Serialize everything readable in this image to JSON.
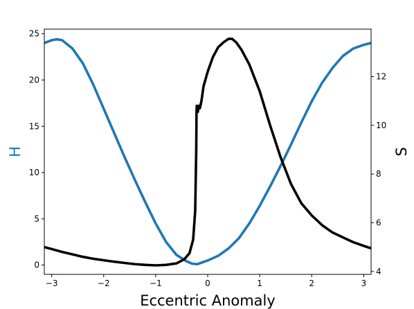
{
  "chart_data": {
    "type": "line",
    "title": "",
    "xlabel": "Eccentric Anomaly",
    "ylabel_left": "H",
    "ylabel_right": "S",
    "xlim": [
      -3.1416,
      3.1416
    ],
    "ylim_left": [
      -1.0,
      25.5
    ],
    "ylim_right": [
      3.88,
      13.95
    ],
    "x_ticks": [
      -3,
      -2,
      -1,
      0,
      1,
      2,
      3
    ],
    "x_tick_labels": [
      "−3",
      "−2",
      "−1",
      "0",
      "1",
      "2",
      "3"
    ],
    "y_left_ticks": [
      0,
      5,
      10,
      15,
      20,
      25
    ],
    "y_left_tick_labels": [
      "0",
      "5",
      "10",
      "15",
      "20",
      "25"
    ],
    "y_right_ticks": [
      4,
      6,
      8,
      10,
      12
    ],
    "y_right_tick_labels": [
      "4",
      "6",
      "8",
      "10",
      "12"
    ],
    "grid": false,
    "series": [
      {
        "axis": "left",
        "color": "#1f77b4",
        "x": [
          -3.1416,
          -3.0,
          -2.9,
          -2.8,
          -2.6,
          -2.4,
          -2.2,
          -2.0,
          -1.8,
          -1.6,
          -1.4,
          -1.2,
          -1.0,
          -0.8,
          -0.6,
          -0.4,
          -0.3,
          -0.2,
          -0.1,
          0.0,
          0.2,
          0.4,
          0.6,
          0.8,
          1.0,
          1.2,
          1.4,
          1.6,
          1.8,
          2.0,
          2.2,
          2.4,
          2.6,
          2.8,
          3.0,
          3.1416
        ],
        "y": [
          24.0,
          24.3,
          24.4,
          24.3,
          23.4,
          21.8,
          19.5,
          16.9,
          14.3,
          11.7,
          9.2,
          6.8,
          4.5,
          2.5,
          1.1,
          0.4,
          0.15,
          0.1,
          0.3,
          0.5,
          1.0,
          1.8,
          2.9,
          4.5,
          6.4,
          8.5,
          10.7,
          13.0,
          15.4,
          17.7,
          19.7,
          21.3,
          22.6,
          23.4,
          23.8,
          24.0
        ]
      },
      {
        "axis": "right",
        "color": "#000000",
        "x": [
          -3.1416,
          -3.0,
          -2.8,
          -2.6,
          -2.4,
          -2.2,
          -2.0,
          -1.8,
          -1.6,
          -1.4,
          -1.2,
          -1.0,
          -0.8,
          -0.6,
          -0.45,
          -0.35,
          -0.28,
          -0.24,
          -0.22,
          -0.215,
          -0.21,
          -0.2,
          -0.19,
          -0.17,
          -0.15,
          -0.12,
          -0.08,
          0.0,
          0.1,
          0.2,
          0.3,
          0.4,
          0.47,
          0.55,
          0.65,
          0.8,
          1.0,
          1.2,
          1.4,
          1.6,
          1.8,
          2.0,
          2.2,
          2.4,
          2.6,
          2.8,
          3.0,
          3.1416
        ],
        "y": [
          5.0,
          4.92,
          4.8,
          4.7,
          4.6,
          4.52,
          4.46,
          4.4,
          4.35,
          4.3,
          4.27,
          4.25,
          4.27,
          4.33,
          4.5,
          4.75,
          5.3,
          6.5,
          9.0,
          10.5,
          10.8,
          10.7,
          10.55,
          10.8,
          10.7,
          11.0,
          11.6,
          12.2,
          12.8,
          13.2,
          13.4,
          13.55,
          13.55,
          13.4,
          13.1,
          12.5,
          11.4,
          10.0,
          8.7,
          7.6,
          6.8,
          6.3,
          5.9,
          5.6,
          5.4,
          5.2,
          5.05,
          4.95
        ]
      }
    ]
  }
}
